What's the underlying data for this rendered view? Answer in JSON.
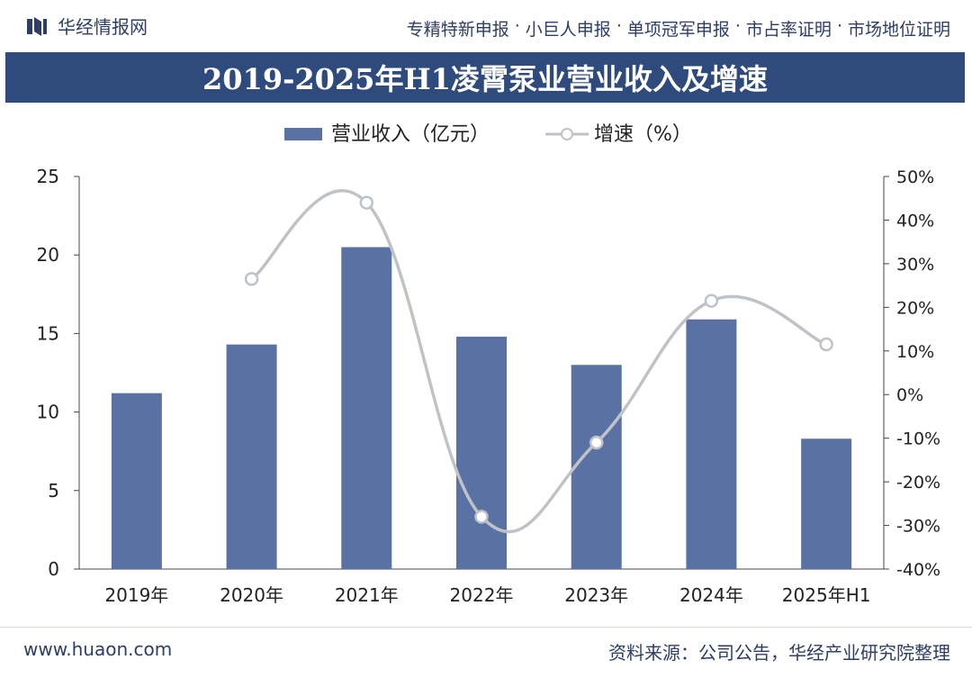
{
  "header": {
    "brand": "华经情报网",
    "services": [
      "专精特新申报",
      "小巨人申报",
      "单项冠军申报",
      "市占率证明",
      "市场地位证明"
    ],
    "separator": "·"
  },
  "title": "2019-2025年H1凌霄泵业营业收入及增速",
  "footer": {
    "website": "www.huaon.com",
    "source": "资料来源：公司公告，华经产业研究院整理"
  },
  "colors": {
    "bar": "#5a71a3",
    "line": "#bfc3c8",
    "title_bg": "#2f4a7d",
    "text": "#2e3d63"
  },
  "chart_data": {
    "type": "bar",
    "categories": [
      "2019年",
      "2020年",
      "2021年",
      "2022年",
      "2023年",
      "2024年",
      "2025年H1"
    ],
    "series": [
      {
        "name": "营业收入（亿元）",
        "type": "bar",
        "axis": "left",
        "values": [
          11.2,
          14.3,
          20.5,
          14.8,
          13.0,
          15.9,
          8.3
        ]
      },
      {
        "name": "增速（%）",
        "type": "line",
        "axis": "right",
        "values": [
          null,
          26.5,
          44.0,
          -28.0,
          -11.0,
          21.5,
          11.5
        ]
      }
    ],
    "ylim_left": [
      0,
      25
    ],
    "yticks_left": [
      "0",
      "5",
      "10",
      "15",
      "20",
      "25"
    ],
    "ylim_right": [
      -40,
      50
    ],
    "yticks_right": [
      "-40%",
      "-30%",
      "-20%",
      "-10%",
      "0%",
      "10%",
      "20%",
      "30%",
      "40%",
      "50%"
    ],
    "legend_position": "top-center",
    "grid": false
  }
}
